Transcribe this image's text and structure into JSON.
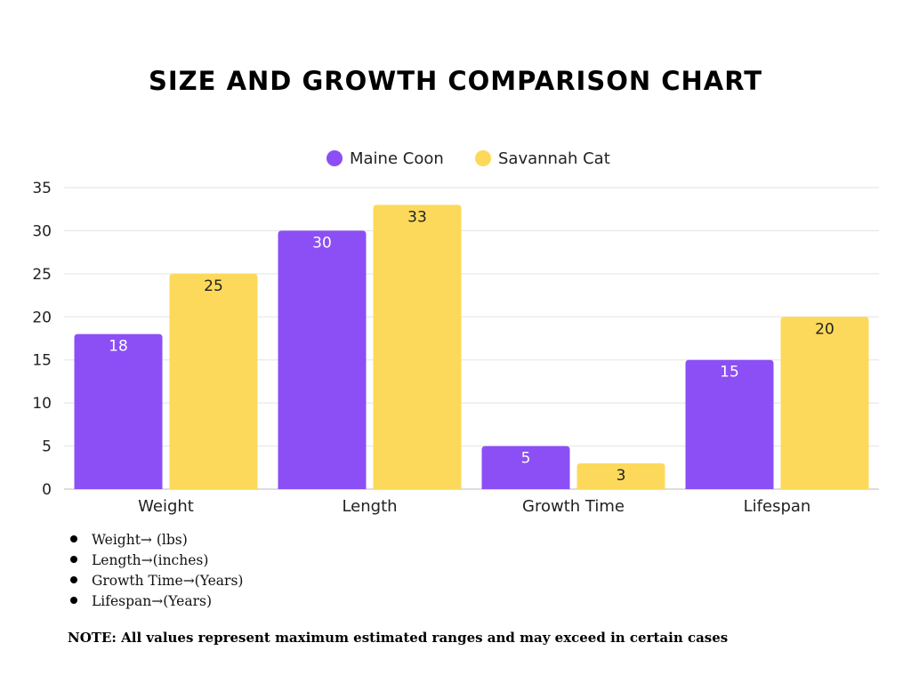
{
  "chart_data": {
    "type": "bar",
    "title": "SIZE AND GROWTH COMPARISON CHART",
    "categories": [
      "Weight",
      "Length",
      "Growth Time",
      "Lifespan"
    ],
    "series": [
      {
        "name": "Maine Coon",
        "color": "#8c4ff5",
        "label_color": "#ffffff",
        "values": [
          18,
          30,
          5,
          15
        ]
      },
      {
        "name": "Savannah Cat",
        "color": "#fcd95a",
        "label_color": "#222222",
        "values": [
          25,
          33,
          3,
          20
        ]
      }
    ],
    "ylim": [
      0,
      35
    ],
    "yticks": [
      0,
      5,
      10,
      15,
      20,
      25,
      30,
      35
    ],
    "grid": true,
    "legend": "top-center",
    "xlabel": "",
    "ylabel": ""
  },
  "notes": [
    "Weight→ (lbs)",
    "Length→(inches)",
    "Growth Time→(Years)",
    "Lifespan→(Years)"
  ],
  "footnote": "NOTE: All values represent maximum estimated ranges and may exceed in certain cases"
}
